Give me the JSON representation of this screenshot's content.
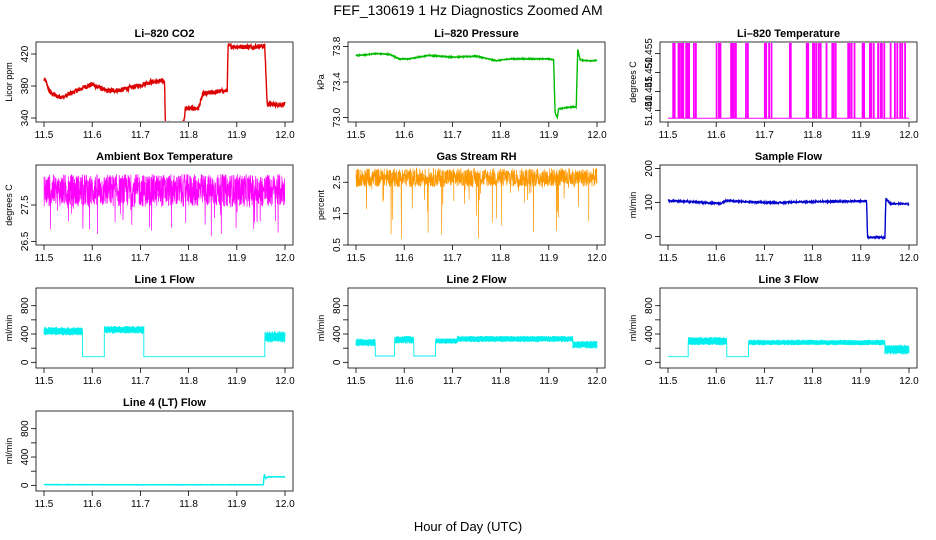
{
  "figure": {
    "title": "FEF_130619  1 Hz Diagnostics Zoomed AM",
    "xlabel": "Hour of Day (UTC)"
  },
  "chart_data": [
    {
      "id": "co2",
      "type": "line",
      "title": "Li–820 CO2",
      "ylabel": "Licor ppm",
      "color": "#dd0000",
      "xlim": [
        11.5,
        12.0
      ],
      "ylim": [
        335,
        435
      ],
      "yticks": [
        340,
        380,
        420
      ],
      "ytick_labels": [
        "340",
        "380",
        "420"
      ],
      "xticks": [
        11.5,
        11.6,
        11.7,
        11.8,
        11.9,
        12.0
      ],
      "xtick_labels": [
        "11.5",
        "11.6",
        "11.7",
        "11.8",
        "11.9",
        "12.0"
      ],
      "series": [
        {
          "x": [
            11.5,
            11.503,
            11.512,
            11.523,
            11.54,
            11.56,
            11.57,
            11.59,
            11.6,
            11.63,
            11.66,
            11.68,
            11.7,
            11.72,
            11.74,
            11.75,
            11.752,
            11.76,
            11.77,
            11.79,
            11.793,
            11.82,
            11.83,
            11.86,
            11.88,
            11.882,
            11.9,
            11.93,
            11.958,
            11.963,
            11.99,
            12.0
          ],
          "y": [
            388,
            387,
            372,
            368,
            366,
            372,
            375,
            380,
            382,
            374,
            375,
            378,
            381,
            385,
            386,
            386,
            332,
            332,
            332,
            333,
            352,
            352,
            370,
            373,
            374,
            430,
            429,
            429,
            430,
            357,
            357,
            357
          ],
          "noise": 3
        }
      ]
    },
    {
      "id": "pressure",
      "type": "line",
      "title": "Li–820 Pressure",
      "ylabel": "kPa",
      "color": "#00bb00",
      "xlim": [
        11.5,
        12.0
      ],
      "ylim": [
        72.95,
        73.85
      ],
      "yticks": [
        73.0,
        73.4,
        73.8
      ],
      "ytick_labels": [
        "73.0",
        "73.4",
        "73.8"
      ],
      "xticks": [
        11.5,
        11.6,
        11.7,
        11.8,
        11.9,
        12.0
      ],
      "xtick_labels": [
        "11.5",
        "11.6",
        "11.7",
        "11.8",
        "11.9",
        "12.0"
      ],
      "series": [
        {
          "x": [
            11.5,
            11.51,
            11.54,
            11.57,
            11.59,
            11.61,
            11.65,
            11.7,
            11.75,
            11.79,
            11.82,
            11.85,
            11.9,
            11.91,
            11.913,
            11.918,
            11.92,
            11.95,
            11.957,
            11.96,
            11.965,
            11.98,
            12.0
          ],
          "y": [
            73.7,
            73.7,
            73.72,
            73.71,
            73.66,
            73.66,
            73.7,
            73.68,
            73.69,
            73.64,
            73.66,
            73.66,
            73.66,
            73.65,
            73.05,
            73.0,
            73.1,
            73.12,
            73.12,
            73.77,
            73.65,
            73.64,
            73.64
          ],
          "noise": 0.005
        }
      ]
    },
    {
      "id": "temperature",
      "type": "line",
      "title": "Li–820 Temperature",
      "ylabel": "degrees C",
      "color": "#ff00ff",
      "xlim": [
        11.5,
        12.0
      ],
      "ylim": [
        51.437,
        51.458
      ],
      "yticks": [
        51.44,
        51.445,
        51.45,
        51.455
      ],
      "ytick_labels": [
        "51.440",
        "51.445",
        "51.450",
        "51.455"
      ],
      "xticks": [
        11.5,
        11.6,
        11.7,
        11.8,
        11.9,
        12.0
      ],
      "xtick_labels": [
        "11.5",
        "11.6",
        "11.7",
        "11.8",
        "11.9",
        "12.0"
      ],
      "spike_base": 51.438,
      "spike_top": 51.458,
      "spikes": [
        11.51,
        11.513,
        11.521,
        11.524,
        11.528,
        11.531,
        11.537,
        11.54,
        11.543,
        11.553,
        11.557,
        11.6,
        11.605,
        11.608,
        11.63,
        11.633,
        11.636,
        11.64,
        11.661,
        11.665,
        11.7,
        11.703,
        11.709,
        11.714,
        11.752,
        11.754,
        11.787,
        11.79,
        11.8,
        11.803,
        11.807,
        11.812,
        11.816,
        11.828,
        11.84,
        11.843,
        11.847,
        11.873,
        11.876,
        11.88,
        11.886,
        11.903,
        11.906,
        11.918,
        11.921,
        11.926,
        11.935,
        11.94,
        11.943,
        11.948,
        11.961,
        11.97,
        11.975,
        11.981,
        11.985,
        11.991
      ]
    },
    {
      "id": "ambient",
      "type": "line",
      "title": "Ambient Box Temperature",
      "ylabel": "degrees C",
      "color": "#ff00ff",
      "xlim": [
        11.5,
        12.0
      ],
      "ylim": [
        26.4,
        28.6
      ],
      "yticks": [
        26.5,
        27.5
      ],
      "ytick_labels": [
        "26.5",
        "27.5"
      ],
      "xticks": [
        11.5,
        11.6,
        11.7,
        11.8,
        11.9,
        12.0
      ],
      "xtick_labels": [
        "11.5",
        "11.6",
        "11.7",
        "11.8",
        "11.9",
        "12.0"
      ],
      "band": {
        "center": 27.9,
        "halfwidth": 0.45,
        "dips_to": 26.6
      }
    },
    {
      "id": "rh",
      "type": "line",
      "title": "Gas Stream RH",
      "ylabel": "percent",
      "color": "#ff9900",
      "xlim": [
        11.5,
        12.0
      ],
      "ylim": [
        0.5,
        3.05
      ],
      "yticks": [
        0.5,
        1.5,
        2.5
      ],
      "ytick_labels": [
        "0.5",
        "1.5",
        "2.5"
      ],
      "xticks": [
        11.5,
        11.6,
        11.7,
        11.8,
        11.9,
        12.0
      ],
      "xtick_labels": [
        "11.5",
        "11.6",
        "11.7",
        "11.8",
        "11.9",
        "12.0"
      ],
      "band": {
        "center": 2.65,
        "halfwidth": 0.3,
        "dips_to": 0.6
      }
    },
    {
      "id": "sample",
      "type": "line",
      "title": "Sample Flow",
      "ylabel": "ml/min",
      "color": "#0000cc",
      "xlim": [
        11.5,
        12.0
      ],
      "ylim": [
        -25,
        210
      ],
      "yticks": [
        0,
        100,
        200
      ],
      "ytick_labels": [
        "0",
        "100",
        "200"
      ],
      "xticks": [
        11.5,
        11.6,
        11.7,
        11.8,
        11.9,
        12.0
      ],
      "xtick_labels": [
        "11.5",
        "11.6",
        "11.7",
        "11.8",
        "11.9",
        "12.0"
      ],
      "series": [
        {
          "x": [
            11.5,
            11.52,
            11.56,
            11.58,
            11.61,
            11.62,
            11.65,
            11.7,
            11.73,
            11.76,
            11.8,
            11.85,
            11.9,
            11.912,
            11.914,
            11.945,
            11.95,
            11.952,
            11.96,
            11.99,
            12.0
          ],
          "y": [
            105,
            104,
            101,
            99,
            97,
            105,
            103,
            100,
            99,
            101,
            102,
            103,
            104,
            104,
            -3,
            -3,
            -3,
            112,
            97,
            96,
            95
          ],
          "noise": 2
        }
      ]
    },
    {
      "id": "line1",
      "type": "line",
      "title": "Line 1 Flow",
      "ylabel": "ml/min",
      "color": "#00eeee",
      "xlim": [
        11.5,
        12.0
      ],
      "ylim": [
        -80,
        1050
      ],
      "yticks": [
        0,
        200,
        400,
        600,
        800
      ],
      "ytick_labels": [
        "0",
        "400",
        "800"
      ],
      "xticks": [
        11.5,
        11.6,
        11.7,
        11.8,
        11.9,
        12.0
      ],
      "xtick_labels": [
        "11.5",
        "11.6",
        "11.7",
        "11.8",
        "11.9",
        "12.0"
      ],
      "segments": [
        {
          "x0": 11.5,
          "x1": 11.58,
          "y": 440,
          "amp": 60
        },
        {
          "x0": 11.58,
          "x1": 11.625,
          "y": 80,
          "amp": 0
        },
        {
          "x0": 11.625,
          "x1": 11.707,
          "y": 460,
          "amp": 55
        },
        {
          "x0": 11.707,
          "x1": 11.958,
          "y": 80,
          "amp": 0
        },
        {
          "x0": 11.958,
          "x1": 12.0,
          "y": 360,
          "amp": 80
        }
      ]
    },
    {
      "id": "line2",
      "type": "line",
      "title": "Line 2 Flow",
      "ylabel": "ml/min",
      "color": "#00eeee",
      "xlim": [
        11.5,
        12.0
      ],
      "ylim": [
        -80,
        1050
      ],
      "yticks": [
        0,
        200,
        400,
        600,
        800
      ],
      "ytick_labels": [
        "0",
        "400",
        "800"
      ],
      "xticks": [
        11.5,
        11.6,
        11.7,
        11.8,
        11.9,
        12.0
      ],
      "xtick_labels": [
        "11.5",
        "11.6",
        "11.7",
        "11.8",
        "11.9",
        "12.0"
      ],
      "segments": [
        {
          "x0": 11.5,
          "x1": 11.54,
          "y": 280,
          "amp": 55
        },
        {
          "x0": 11.54,
          "x1": 11.58,
          "y": 90,
          "amp": 0
        },
        {
          "x0": 11.58,
          "x1": 11.62,
          "y": 320,
          "amp": 55
        },
        {
          "x0": 11.62,
          "x1": 11.665,
          "y": 90,
          "amp": 0
        },
        {
          "x0": 11.665,
          "x1": 11.71,
          "y": 300,
          "amp": 40
        },
        {
          "x0": 11.71,
          "x1": 11.95,
          "y": 330,
          "amp": 45
        },
        {
          "x0": 11.95,
          "x1": 12.0,
          "y": 250,
          "amp": 55
        }
      ]
    },
    {
      "id": "line3",
      "type": "line",
      "title": "Line 3 Flow",
      "ylabel": "ml/min",
      "color": "#00eeee",
      "xlim": [
        11.5,
        12.0
      ],
      "ylim": [
        -80,
        1050
      ],
      "yticks": [
        0,
        200,
        400,
        600,
        800
      ],
      "ytick_labels": [
        "0",
        "400",
        "800"
      ],
      "xticks": [
        11.5,
        11.6,
        11.7,
        11.8,
        11.9,
        12.0
      ],
      "xtick_labels": [
        "11.5",
        "11.6",
        "11.7",
        "11.8",
        "11.9",
        "12.0"
      ],
      "segments": [
        {
          "x0": 11.5,
          "x1": 11.542,
          "y": 80,
          "amp": 0
        },
        {
          "x0": 11.542,
          "x1": 11.622,
          "y": 300,
          "amp": 60
        },
        {
          "x0": 11.622,
          "x1": 11.667,
          "y": 80,
          "amp": 0
        },
        {
          "x0": 11.667,
          "x1": 11.95,
          "y": 280,
          "amp": 40
        },
        {
          "x0": 11.95,
          "x1": 12.0,
          "y": 180,
          "amp": 70
        }
      ]
    },
    {
      "id": "line4",
      "type": "line",
      "title": "Line 4 (LT) Flow",
      "ylabel": "ml/min",
      "color": "#00eeee",
      "xlim": [
        11.5,
        12.0
      ],
      "ylim": [
        -80,
        1050
      ],
      "yticks": [
        0,
        200,
        400,
        600,
        800
      ],
      "ytick_labels": [
        "0",
        "400",
        "800"
      ],
      "xticks": [
        11.5,
        11.6,
        11.7,
        11.8,
        11.9,
        12.0
      ],
      "xtick_labels": [
        "11.5",
        "11.6",
        "11.7",
        "11.8",
        "11.9",
        "12.0"
      ],
      "series": [
        {
          "x": [
            11.5,
            11.7,
            11.955,
            11.957,
            11.96,
            11.965,
            12.0
          ],
          "y": [
            10,
            8,
            8,
            160,
            100,
            120,
            120
          ],
          "noise": 2
        }
      ]
    }
  ]
}
